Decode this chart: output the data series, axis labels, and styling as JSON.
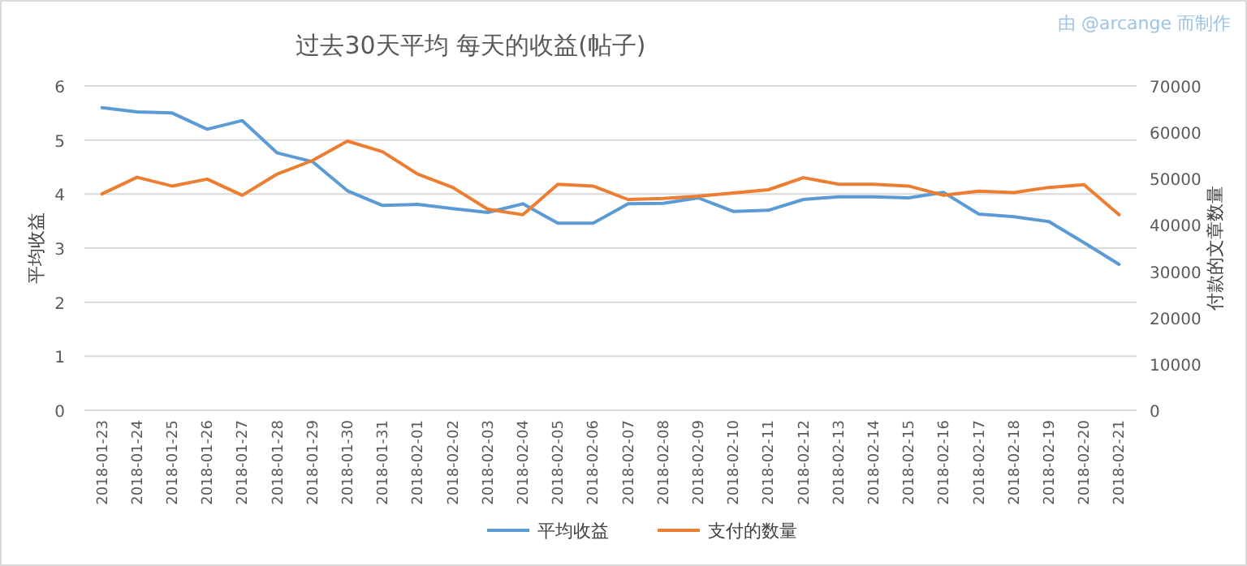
{
  "chart_data": {
    "type": "line",
    "title": "过去30天平均 每天的收益(帖子)",
    "ylabel": "平均收益",
    "y2label": "付款的文章数量",
    "annotations": [
      "由 @arcange 而制作"
    ],
    "categories": [
      "2018-01-23",
      "2018-01-24",
      "2018-01-25",
      "2018-01-26",
      "2018-01-27",
      "2018-01-28",
      "2018-01-29",
      "2018-01-30",
      "2018-01-31",
      "2018-02-01",
      "2018-02-02",
      "2018-02-03",
      "2018-02-04",
      "2018-02-05",
      "2018-02-06",
      "2018-02-07",
      "2018-02-08",
      "2018-02-09",
      "2018-02-10",
      "2018-02-11",
      "2018-02-12",
      "2018-02-13",
      "2018-02-14",
      "2018-02-15",
      "2018-02-16",
      "2018-02-17",
      "2018-02-18",
      "2018-02-19",
      "2018-02-20",
      "2018-02-21"
    ],
    "series": [
      {
        "name": "平均收益",
        "color": "#5b9bd5",
        "values": [
          5.6,
          5.52,
          5.5,
          5.2,
          5.36,
          4.76,
          4.6,
          4.06,
          3.79,
          3.81,
          3.73,
          3.66,
          3.82,
          3.46,
          3.46,
          3.82,
          3.83,
          3.93,
          3.68,
          3.7,
          3.9,
          3.95,
          3.95,
          3.93,
          4.03,
          3.63,
          3.58,
          3.49,
          3.1,
          2.7
        ]
      },
      {
        "name": "支付的数量",
        "color": "#ed7d31",
        "axis": "y2",
        "values": [
          46700,
          50300,
          48400,
          49900,
          46400,
          51000,
          53900,
          58100,
          55800,
          51000,
          48100,
          43400,
          42200,
          48800,
          48400,
          45500,
          45700,
          46200,
          46900,
          47600,
          50200,
          48800,
          48800,
          48400,
          46400,
          47300,
          47000,
          48100,
          48700,
          42200
        ]
      }
    ],
    "ylim": [
      0,
      6
    ],
    "yticks": [
      0,
      1,
      2,
      3,
      4,
      5,
      6
    ],
    "y2lim": [
      0,
      70000
    ],
    "y2ticks": [
      0,
      10000,
      20000,
      30000,
      40000,
      50000,
      60000,
      70000
    ],
    "grid": "y",
    "legend": "bottom",
    "marker": "none",
    "line_style": "solid"
  }
}
